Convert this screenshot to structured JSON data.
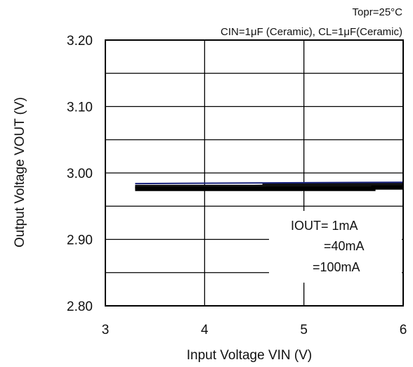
{
  "chart_data": {
    "type": "line",
    "title": "",
    "conditions": {
      "temperature": "Topr=25°C",
      "capacitors": "CIN=1μF (Ceramic), CL=1μF(Ceramic)"
    },
    "xlabel": "Input Voltage VIN (V)",
    "ylabel": "Output Voltage VOUT (V)",
    "xlim": [
      3,
      6
    ],
    "ylim": [
      2.8,
      3.2
    ],
    "x_ticks": [
      "3",
      "4",
      "5",
      "6"
    ],
    "y_ticks": [
      "2.80",
      "2.90",
      "3.00",
      "3.10",
      "3.20"
    ],
    "grid": true,
    "legend_title": "",
    "legend_placement": "lower-right",
    "series": [
      {
        "name": "IOUT= 1mA",
        "color": "#0a0a0a",
        "width": 4,
        "points": [
          [
            3.3,
            2.98
          ],
          [
            4.5,
            2.98
          ],
          [
            5.0,
            2.981
          ],
          [
            6.0,
            2.981
          ]
        ]
      },
      {
        "name": "=40mA",
        "color": "#111111",
        "width": 5,
        "points": [
          [
            3.3,
            2.978
          ],
          [
            4.6,
            2.978
          ],
          [
            4.6,
            2.983
          ],
          [
            6.0,
            2.983
          ]
        ]
      },
      {
        "name": "=100mA",
        "color": "#000000",
        "width": 6,
        "points": [
          [
            3.3,
            2.976
          ],
          [
            5.7,
            2.976
          ],
          [
            5.7,
            2.978
          ],
          [
            6.0,
            2.978
          ]
        ]
      },
      {
        "name": "",
        "color": "#1a237e",
        "width": 2,
        "points": [
          [
            3.3,
            2.984
          ],
          [
            6.0,
            2.986
          ]
        ]
      }
    ]
  }
}
